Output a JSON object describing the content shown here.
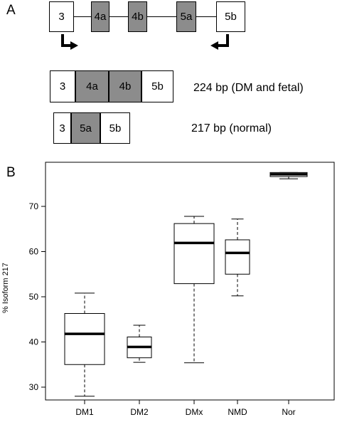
{
  "panel_a": {
    "label": "A",
    "gene_exons": [
      "3",
      "4a",
      "4b",
      "5a",
      "5b"
    ],
    "isoform_224": {
      "exons": [
        "3",
        "4a",
        "4b",
        "5b"
      ],
      "caption": "224 bp (DM and fetal)"
    },
    "isoform_217": {
      "exons": [
        "3",
        "5a",
        "5b"
      ],
      "caption": "217 bp (normal)"
    },
    "colors": {
      "shaded_exon": "#8c8c8c",
      "plain_exon": "#ffffff"
    }
  },
  "panel_b": {
    "label": "B",
    "chart_data": {
      "type": "box",
      "title": "",
      "xlabel": "",
      "ylabel": "% Isoform 217",
      "categories": [
        "DM1",
        "DM2",
        "DMx",
        "NMD",
        "Nor"
      ],
      "yticks": [
        30,
        40,
        50,
        60,
        70
      ],
      "ylim": [
        27,
        80
      ],
      "boxes": [
        {
          "category": "DM1",
          "min": 28.0,
          "q1": 35.0,
          "median": 41.8,
          "q3": 46.3,
          "max": 50.8
        },
        {
          "category": "DM2",
          "min": 35.5,
          "q1": 36.5,
          "median": 38.9,
          "q3": 41.1,
          "max": 43.7
        },
        {
          "category": "DMx",
          "min": 35.4,
          "q1": 52.9,
          "median": 61.9,
          "q3": 66.2,
          "max": 67.8
        },
        {
          "category": "NMD",
          "min": 50.2,
          "q1": 55.0,
          "median": 59.7,
          "q3": 62.6,
          "max": 67.2
        },
        {
          "category": "Nor",
          "min": 76.1,
          "q1": 76.6,
          "median": 77.1,
          "q3": 77.5,
          "max": 77.5
        }
      ],
      "grid": false,
      "legend": "none"
    }
  }
}
